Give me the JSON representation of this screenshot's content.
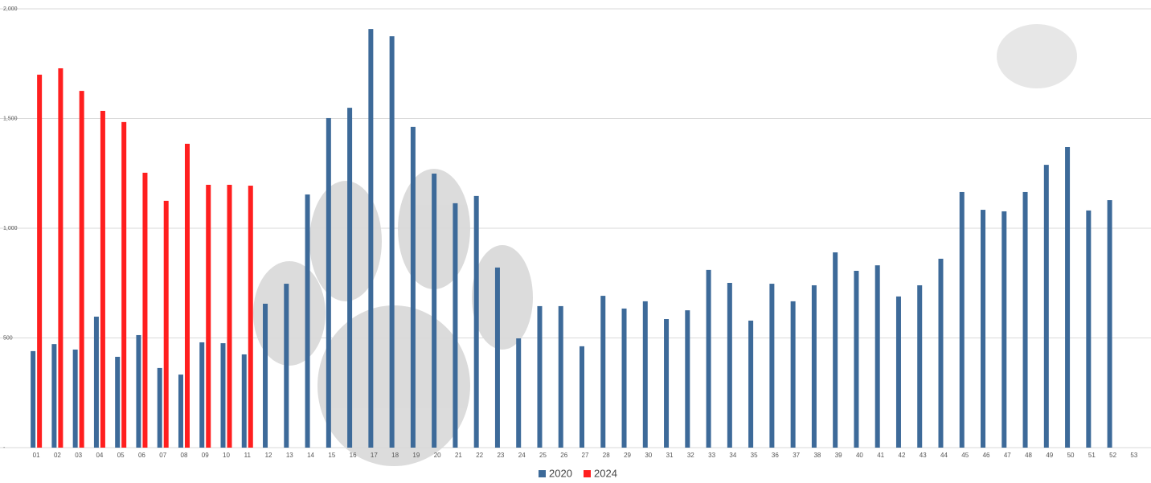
{
  "chart_data": {
    "type": "bar",
    "categories": [
      "01",
      "02",
      "03",
      "04",
      "05",
      "06",
      "07",
      "08",
      "09",
      "10",
      "11",
      "12",
      "13",
      "14",
      "15",
      "16",
      "17",
      "18",
      "19",
      "20",
      "21",
      "22",
      "23",
      "24",
      "25",
      "26",
      "27",
      "28",
      "29",
      "30",
      "31",
      "32",
      "33",
      "34",
      "35",
      "36",
      "37",
      "38",
      "39",
      "40",
      "41",
      "42",
      "43",
      "44",
      "45",
      "46",
      "47",
      "48",
      "49",
      "50",
      "51",
      "52",
      "53"
    ],
    "series": [
      {
        "name": "2020",
        "color": "#3d6a99",
        "values": [
          440,
          472,
          447,
          597,
          414,
          513,
          363,
          333,
          480,
          476,
          425,
          656,
          747,
          1154,
          1502,
          1549,
          1908,
          1875,
          1462,
          1249,
          1114,
          1147,
          821,
          498,
          645,
          645,
          462,
          692,
          634,
          667,
          586,
          626,
          810,
          751,
          579,
          747,
          667,
          740,
          890,
          806,
          831,
          689,
          740,
          861,
          1165,
          1084,
          1077,
          1165,
          1289,
          1370,
          1081,
          1128,
          null
        ]
      },
      {
        "name": "2024",
        "color": "#ff1f1f",
        "values": [
          1700,
          1729,
          1626,
          1535,
          1484,
          1253,
          1125,
          1385,
          1198,
          1198,
          1194,
          null,
          null,
          null,
          null,
          null,
          null,
          null,
          null,
          null,
          null,
          null,
          null,
          null,
          null,
          null,
          null,
          null,
          null,
          null,
          null,
          null,
          null,
          null,
          null,
          null,
          null,
          null,
          null,
          null,
          null,
          null,
          null,
          null,
          null,
          null,
          null,
          null,
          null,
          null,
          null,
          null,
          null
        ]
      }
    ],
    "ylim": [
      0,
      2000
    ],
    "yticks": [
      {
        "value": 0,
        "label": "-"
      },
      500,
      {
        "value": 1000,
        "label": "1,000"
      },
      {
        "value": 1500,
        "label": "1,500"
      },
      {
        "value": 2000,
        "label": "2,000"
      }
    ],
    "grid": true,
    "legend": "bottom"
  }
}
